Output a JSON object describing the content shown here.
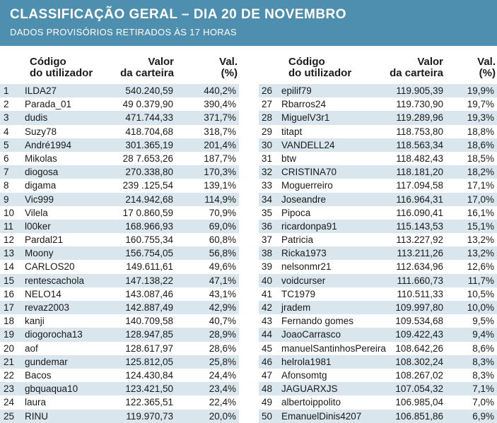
{
  "title": "CLASSIFICAÇÃO GERAL – DIA 20 DE NOVEMBRO",
  "subtitle": "DADOS PROVISÓRIOS RETIRADOS ÀS 17 HORAS",
  "columns": {
    "user_line1": "Código",
    "user_line2": "do utilizador",
    "value_line1": "Valor",
    "value_line2": "da carteira",
    "pct_line1": "Val.",
    "pct_line2": "(%)"
  },
  "colors": {
    "header_bg": "#4e8fb0",
    "row_shade": "#d9e6ed"
  },
  "rows": [
    {
      "rank": "1",
      "user": "ILDA27",
      "value": "540.240,59",
      "pct": "440,2%"
    },
    {
      "rank": "2",
      "user": "Parada_01",
      "value": "49 0.379,90",
      "pct": "390,4%"
    },
    {
      "rank": "3",
      "user": "dudis",
      "value": "471.744,33",
      "pct": "371,7%"
    },
    {
      "rank": "4",
      "user": "Suzy78",
      "value": "418.704,68",
      "pct": "318,7%"
    },
    {
      "rank": "5",
      "user": "André1994",
      "value": "301.365,19",
      "pct": "201,4%"
    },
    {
      "rank": "6",
      "user": "Mikolas",
      "value": "28 7.653,26",
      "pct": "187,7%"
    },
    {
      "rank": "7",
      "user": "diogosa",
      "value": "270.338,80",
      "pct": "170,3%"
    },
    {
      "rank": "8",
      "user": "digama",
      "value": "239 .125,54",
      "pct": "139,1%"
    },
    {
      "rank": "9",
      "user": "Vic999",
      "value": "214.942,68",
      "pct": "114,9%"
    },
    {
      "rank": "10",
      "user": "Vilela",
      "value": "17 0.860,59",
      "pct": "70,9%"
    },
    {
      "rank": "11",
      "user": "l00ker",
      "value": "168.966,93",
      "pct": "69,0%"
    },
    {
      "rank": "12",
      "user": "Pardal21",
      "value": "160.755,34",
      "pct": "60,8%"
    },
    {
      "rank": "13",
      "user": "Moony",
      "value": "156.754,05",
      "pct": "56,8%"
    },
    {
      "rank": "14",
      "user": "CARLOS20",
      "value": "149.611,61",
      "pct": "49,6%"
    },
    {
      "rank": "15",
      "user": "rentescachola",
      "value": "147.138,22",
      "pct": "47,1%"
    },
    {
      "rank": "16",
      "user": "NELO14",
      "value": "143.087,46",
      "pct": "43,1%"
    },
    {
      "rank": "17",
      "user": "revaz2003",
      "value": "142.887,49",
      "pct": "42,9%"
    },
    {
      "rank": "18",
      "user": "kanji",
      "value": "140.709,58",
      "pct": "40,7%"
    },
    {
      "rank": "19",
      "user": "diogorocha13",
      "value": "128.947,85",
      "pct": "28,9%"
    },
    {
      "rank": "20",
      "user": "aof",
      "value": "128.617,97",
      "pct": "28,6%"
    },
    {
      "rank": "21",
      "user": "gundemar",
      "value": "125.812,05",
      "pct": "25,8%"
    },
    {
      "rank": "22",
      "user": "Bacos",
      "value": "124.430,84",
      "pct": "24,4%"
    },
    {
      "rank": "23",
      "user": "gbquaqua10",
      "value": "123.421,50",
      "pct": "23,4%"
    },
    {
      "rank": "24",
      "user": "laura",
      "value": "122.365,51",
      "pct": "22,4%"
    },
    {
      "rank": "25",
      "user": "RINU",
      "value": "119.970,73",
      "pct": "20,0%"
    },
    {
      "rank": "26",
      "user": "epilif79",
      "value": "119.905,39",
      "pct": "19,9%"
    },
    {
      "rank": "27",
      "user": "Rbarros24",
      "value": "119.730,90",
      "pct": "19,7%"
    },
    {
      "rank": "28",
      "user": "MiguelV3r1",
      "value": "119.289,96",
      "pct": "19,3%"
    },
    {
      "rank": "29",
      "user": "titapt",
      "value": "118.753,80",
      "pct": "18,8%"
    },
    {
      "rank": "30",
      "user": "VANDELL24",
      "value": "118.563,34",
      "pct": "18,6%"
    },
    {
      "rank": "31",
      "user": "btw",
      "value": "118.482,43",
      "pct": "18,5%"
    },
    {
      "rank": "32",
      "user": "CRISTINA70",
      "value": "118.181,20",
      "pct": "18,2%"
    },
    {
      "rank": "33",
      "user": "Moguerreiro",
      "value": "117.094,58",
      "pct": "17,1%"
    },
    {
      "rank": "34",
      "user": "Joseandre",
      "value": "116.964,31",
      "pct": "17,0%"
    },
    {
      "rank": "35",
      "user": "Pipoca",
      "value": "116.090,41",
      "pct": "16,1%"
    },
    {
      "rank": "36",
      "user": "ricardonpa91",
      "value": "115.143,53",
      "pct": "15,1%"
    },
    {
      "rank": "37",
      "user": "Patricia",
      "value": "113.227,92",
      "pct": "13,2%"
    },
    {
      "rank": "38",
      "user": "Ricka1973",
      "value": "113.211,26",
      "pct": "13,2%"
    },
    {
      "rank": "39",
      "user": "nelsonmr21",
      "value": "112.634,96",
      "pct": "12,6%"
    },
    {
      "rank": "40",
      "user": "voidcurser",
      "value": "111.660,73",
      "pct": "11,7%"
    },
    {
      "rank": "41",
      "user": "TC1979",
      "value": "110.511,33",
      "pct": "10,5%"
    },
    {
      "rank": "42",
      "user": "jradem",
      "value": "109.997,80",
      "pct": "10,0%"
    },
    {
      "rank": "43",
      "user": "Fernando gomes",
      "value": "109.534,68",
      "pct": "9,5%"
    },
    {
      "rank": "44",
      "user": "JoaoCarrasco",
      "value": "109.422,43",
      "pct": "9,4%"
    },
    {
      "rank": "45",
      "user": "manuelSantinhosPereira",
      "value": "108.642,26",
      "pct": "8,6%"
    },
    {
      "rank": "46",
      "user": "helrola1981",
      "value": "108.302,24",
      "pct": "8,3%"
    },
    {
      "rank": "47",
      "user": "Afonsomtg",
      "value": "108.267,02",
      "pct": "8,3%"
    },
    {
      "rank": "48",
      "user": "JAGUARXJS",
      "value": "107.054,32",
      "pct": "7,1%"
    },
    {
      "rank": "49",
      "user": "albertoippolito",
      "value": "106.985,04",
      "pct": "7,0%"
    },
    {
      "rank": "50",
      "user": "EmanuelDinis4207",
      "value": "106.851,86",
      "pct": "6,9%"
    }
  ]
}
